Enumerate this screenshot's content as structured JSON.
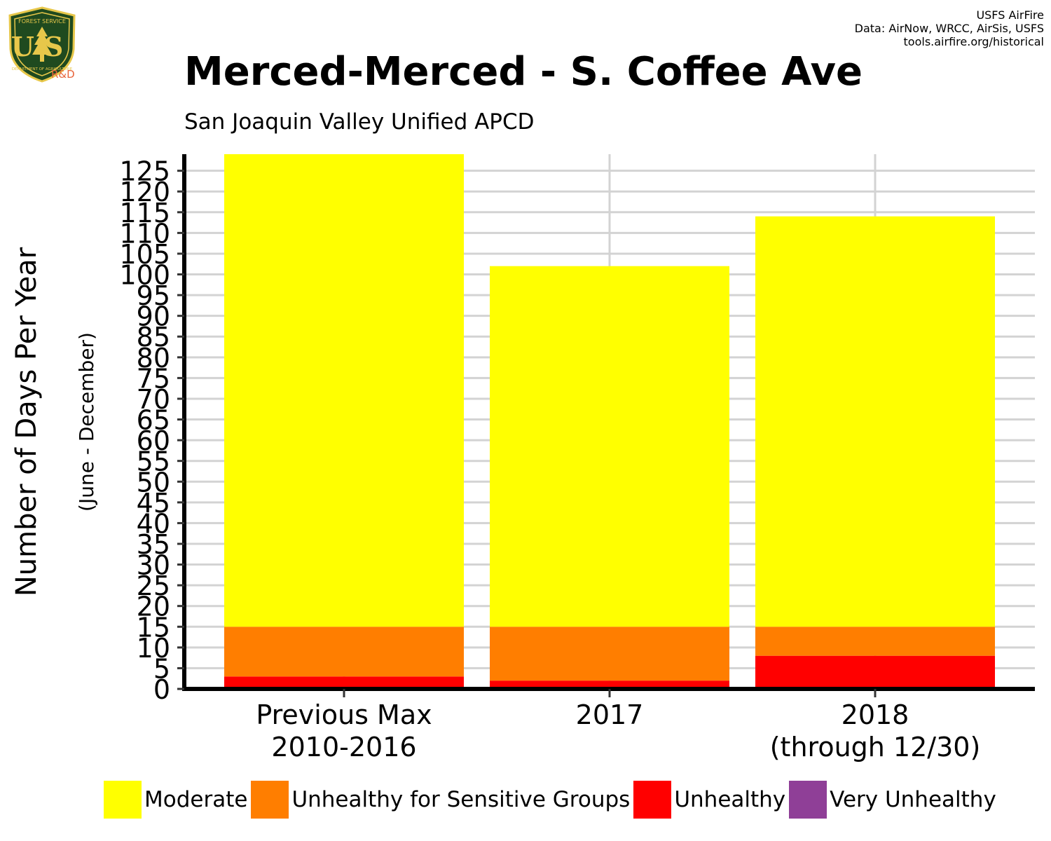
{
  "credits": {
    "line1": "USFS AirFire",
    "line2": "Data: AirNow, WRCC, AirSis, USFS",
    "line3": "tools.airfire.org/historical"
  },
  "logo": {
    "top_text": "FOREST SERVICE",
    "center_text": "US",
    "bottom_text": "DEPARTMENT OF AGRICULTURE",
    "badge": "R&D"
  },
  "colors": {
    "moderate": "#ffff00",
    "usg": "#ff7e00",
    "unhealthy": "#ff0000",
    "very_unhealthy": "#8f3f97",
    "grid": "#d3d3d3",
    "logo_green": "#1f4a1f",
    "logo_gold": "#e7c74a"
  },
  "chart_data": {
    "type": "bar",
    "stacked": true,
    "title": "Merced-Merced - S. Coffee Ave",
    "subtitle": "San Joaquin Valley Unified APCD",
    "ylabel": "Number of Days Per Year",
    "ylabel_sub": "(June - December)",
    "categories": [
      [
        "Previous Max",
        "2010-2016"
      ],
      [
        "2017"
      ],
      [
        "2018",
        "(through 12/30)"
      ]
    ],
    "series": [
      {
        "name": "Unhealthy",
        "color": "#ff0000",
        "values": [
          3,
          2,
          8
        ]
      },
      {
        "name": "Unhealthy for Sensitive Groups",
        "color": "#ff7e00",
        "values": [
          12,
          13,
          7
        ]
      },
      {
        "name": "Moderate",
        "color": "#ffff00",
        "values": [
          114,
          87,
          99
        ]
      },
      {
        "name": "Very Unhealthy",
        "color": "#8f3f97",
        "values": [
          0,
          0,
          0
        ]
      }
    ],
    "totals": [
      129,
      102,
      114
    ],
    "ylim": [
      0,
      129
    ],
    "yticks": [
      0,
      5,
      10,
      15,
      20,
      25,
      30,
      35,
      40,
      45,
      50,
      55,
      60,
      65,
      70,
      75,
      80,
      85,
      90,
      95,
      100,
      105,
      110,
      115,
      120,
      125
    ],
    "grid": true,
    "legend": {
      "position": "bottom",
      "order": [
        "Moderate",
        "Unhealthy for Sensitive Groups",
        "Unhealthy",
        "Very Unhealthy"
      ]
    }
  }
}
